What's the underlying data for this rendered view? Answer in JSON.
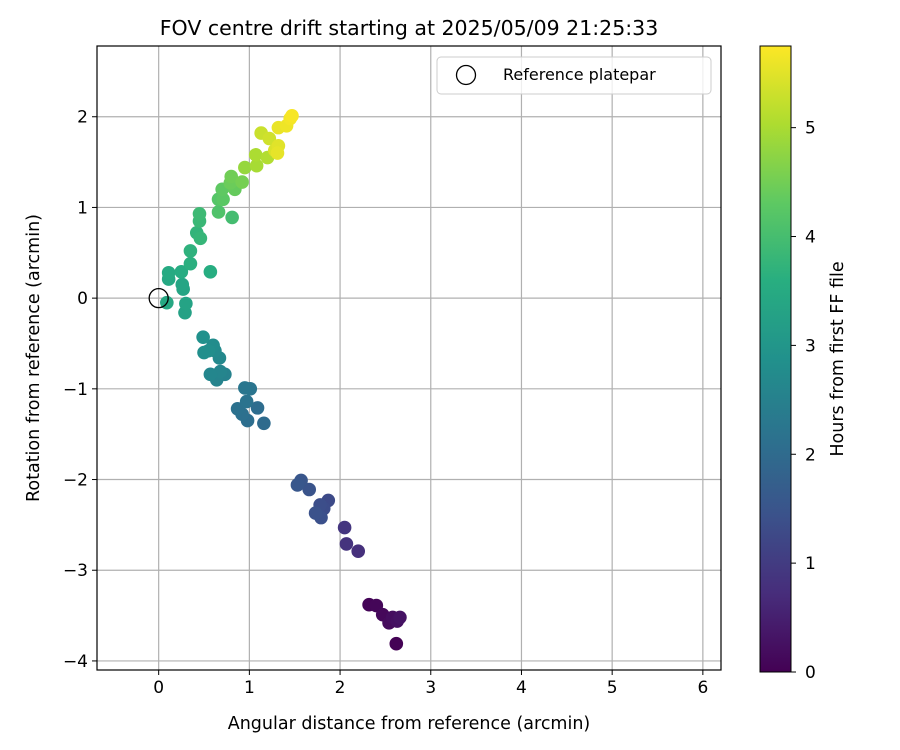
{
  "chart_data": {
    "type": "scatter",
    "title": "FOV centre drift starting at 2025/05/09 21:25:33",
    "xlabel": "Angular distance from reference (arcmin)",
    "ylabel": "Rotation from reference (arcmin)",
    "xlim": [
      -0.68,
      6.2
    ],
    "ylim": [
      -4.1,
      2.78
    ],
    "xticks": [
      0,
      1,
      2,
      3,
      4,
      5,
      6
    ],
    "yticks": [
      -4,
      -3,
      -2,
      -1,
      0,
      1,
      2
    ],
    "grid": true,
    "legend": {
      "placement": "top-right",
      "entries": [
        "Reference platepar"
      ]
    },
    "reference_point": {
      "x": 0,
      "y": 0,
      "label": "Reference platepar"
    },
    "colorbar": {
      "label": "Hours from first FF file",
      "colormap": "viridis",
      "range": [
        0,
        5.75
      ],
      "ticks": [
        0,
        1,
        2,
        3,
        4,
        5
      ]
    },
    "points": [
      {
        "x": 2.62,
        "y": -3.81,
        "h": 0.02
      },
      {
        "x": 2.32,
        "y": -3.38,
        "h": 0.05
      },
      {
        "x": 2.4,
        "y": -3.39,
        "h": 0.08
      },
      {
        "x": 2.47,
        "y": -3.49,
        "h": 0.12
      },
      {
        "x": 2.54,
        "y": -3.58,
        "h": 0.16
      },
      {
        "x": 2.58,
        "y": -3.52,
        "h": 0.2
      },
      {
        "x": 2.63,
        "y": -3.56,
        "h": 0.24
      },
      {
        "x": 2.66,
        "y": -3.52,
        "h": 0.28
      },
      {
        "x": 2.2,
        "y": -2.79,
        "h": 0.8
      },
      {
        "x": 2.07,
        "y": -2.71,
        "h": 0.86
      },
      {
        "x": 2.05,
        "y": -2.53,
        "h": 0.92
      },
      {
        "x": 1.87,
        "y": -2.23,
        "h": 1.3
      },
      {
        "x": 1.82,
        "y": -2.32,
        "h": 1.35
      },
      {
        "x": 1.78,
        "y": -2.28,
        "h": 1.38
      },
      {
        "x": 1.79,
        "y": -2.42,
        "h": 1.42
      },
      {
        "x": 1.73,
        "y": -2.37,
        "h": 1.46
      },
      {
        "x": 1.66,
        "y": -2.11,
        "h": 1.5
      },
      {
        "x": 1.57,
        "y": -2.01,
        "h": 1.55
      },
      {
        "x": 1.53,
        "y": -2.06,
        "h": 1.58
      },
      {
        "x": 1.16,
        "y": -1.38,
        "h": 2.02
      },
      {
        "x": 1.09,
        "y": -1.21,
        "h": 2.06
      },
      {
        "x": 0.98,
        "y": -1.35,
        "h": 2.1
      },
      {
        "x": 0.92,
        "y": -1.28,
        "h": 2.13
      },
      {
        "x": 0.87,
        "y": -1.22,
        "h": 2.16
      },
      {
        "x": 0.97,
        "y": -1.14,
        "h": 2.2
      },
      {
        "x": 1.01,
        "y": -1.0,
        "h": 2.24
      },
      {
        "x": 0.95,
        "y": -0.99,
        "h": 2.27
      },
      {
        "x": 0.73,
        "y": -0.84,
        "h": 2.55
      },
      {
        "x": 0.64,
        "y": -0.9,
        "h": 2.58
      },
      {
        "x": 0.68,
        "y": -0.81,
        "h": 2.62
      },
      {
        "x": 0.57,
        "y": -0.84,
        "h": 2.65
      },
      {
        "x": 0.67,
        "y": -0.66,
        "h": 2.7
      },
      {
        "x": 0.62,
        "y": -0.58,
        "h": 2.74
      },
      {
        "x": 0.6,
        "y": -0.52,
        "h": 2.78
      },
      {
        "x": 0.55,
        "y": -0.58,
        "h": 2.82
      },
      {
        "x": 0.5,
        "y": -0.6,
        "h": 2.86
      },
      {
        "x": 0.49,
        "y": -0.43,
        "h": 2.9
      },
      {
        "x": 0.29,
        "y": -0.16,
        "h": 3.3
      },
      {
        "x": 0.3,
        "y": -0.06,
        "h": 3.34
      },
      {
        "x": 0.27,
        "y": 0.1,
        "h": 3.38
      },
      {
        "x": 0.26,
        "y": 0.15,
        "h": 3.4
      },
      {
        "x": 0.09,
        "y": -0.05,
        "h": 3.44
      },
      {
        "x": 0.11,
        "y": 0.21,
        "h": 3.48
      },
      {
        "x": 0.11,
        "y": 0.28,
        "h": 3.52
      },
      {
        "x": 0.25,
        "y": 0.29,
        "h": 3.56
      },
      {
        "x": 0.57,
        "y": 0.29,
        "h": 3.6
      },
      {
        "x": 0.35,
        "y": 0.38,
        "h": 3.65
      },
      {
        "x": 0.35,
        "y": 0.52,
        "h": 3.7
      },
      {
        "x": 0.42,
        "y": 0.72,
        "h": 3.75
      },
      {
        "x": 0.46,
        "y": 0.66,
        "h": 3.8
      },
      {
        "x": 0.45,
        "y": 0.85,
        "h": 3.85
      },
      {
        "x": 0.45,
        "y": 0.93,
        "h": 3.9
      },
      {
        "x": 0.81,
        "y": 0.89,
        "h": 4.0
      },
      {
        "x": 0.66,
        "y": 0.95,
        "h": 4.15
      },
      {
        "x": 0.66,
        "y": 1.09,
        "h": 4.22
      },
      {
        "x": 0.71,
        "y": 1.09,
        "h": 4.28
      },
      {
        "x": 0.7,
        "y": 1.2,
        "h": 4.33
      },
      {
        "x": 0.84,
        "y": 1.2,
        "h": 4.4
      },
      {
        "x": 0.79,
        "y": 1.27,
        "h": 4.45
      },
      {
        "x": 0.8,
        "y": 1.34,
        "h": 4.5
      },
      {
        "x": 0.92,
        "y": 1.28,
        "h": 4.55
      },
      {
        "x": 0.95,
        "y": 1.44,
        "h": 4.85
      },
      {
        "x": 1.08,
        "y": 1.46,
        "h": 5.0
      },
      {
        "x": 1.07,
        "y": 1.58,
        "h": 5.05
      },
      {
        "x": 1.2,
        "y": 1.55,
        "h": 5.1
      },
      {
        "x": 1.13,
        "y": 1.82,
        "h": 5.3
      },
      {
        "x": 1.22,
        "y": 1.76,
        "h": 5.35
      },
      {
        "x": 1.28,
        "y": 1.63,
        "h": 5.45
      },
      {
        "x": 1.32,
        "y": 1.68,
        "h": 5.5
      },
      {
        "x": 1.31,
        "y": 1.6,
        "h": 5.55
      },
      {
        "x": 1.32,
        "y": 1.88,
        "h": 5.58
      },
      {
        "x": 1.41,
        "y": 1.9,
        "h": 5.62
      },
      {
        "x": 1.45,
        "y": 1.98,
        "h": 5.66
      },
      {
        "x": 1.47,
        "y": 2.01,
        "h": 5.7
      }
    ]
  }
}
